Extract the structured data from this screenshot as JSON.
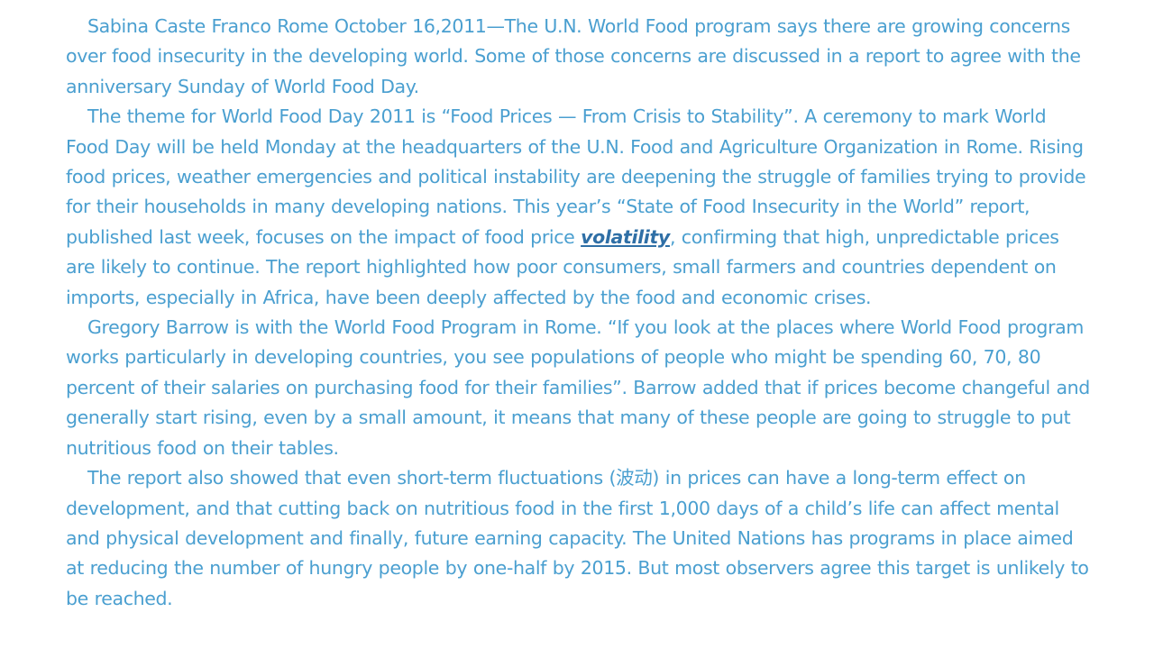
{
  "article": {
    "p1": {
      "text": "Sabina Caste Franco Rome October 16,2011—The U.N. World Food program says there are growing concerns over food insecurity in the developing world. Some of those concerns are discussed in a report to agree with the anniversary Sunday of World Food Day."
    },
    "p2": {
      "before": "The theme for World Food Day 2011 is “Food Prices — From Crisis to Stability”. A ceremony to mark World Food Day will be held Monday at the headquarters of the U.N. Food and Agriculture Organization in Rome. Rising food prices, weather emergencies and political instability are deepening the struggle of families trying to provide for their households in many developing nations. This year’s “State of Food Insecurity in the World” report, published last week, focuses on the impact of food price ",
      "keyword": "volatility",
      "after": ", confirming that high, unpredictable prices are likely to continue. The report highlighted how poor consumers, small farmers and countries dependent on imports, especially in Africa, have been deeply affected by the food and economic crises."
    },
    "p3": {
      "text": "Gregory Barrow is with the World Food Program in Rome. “If you look at the places where World Food program works particularly in developing countries, you see populations of people who might be spending 60, 70, 80 percent of their salaries on purchasing food for their families”. Barrow added that if prices become changeful and generally start rising, even by a small amount, it means that many of these people are going to struggle to put nutritious food on their tables."
    },
    "p4": {
      "text": "The report also showed that even short-term fluctuations (波动) in prices can have a long-term effect on development, and that cutting back on nutritious food in the first 1,000 days of a child’s life can affect mental and physical development and finally, future earning capacity. The United Nations has programs in place aimed at reducing the number of hungry people by one-half by 2015. But most observers agree this target is unlikely to be reached."
    }
  },
  "colors": {
    "text": "#4a9fd0",
    "keyword": "#2f6fa6",
    "background": "#ffffff"
  }
}
